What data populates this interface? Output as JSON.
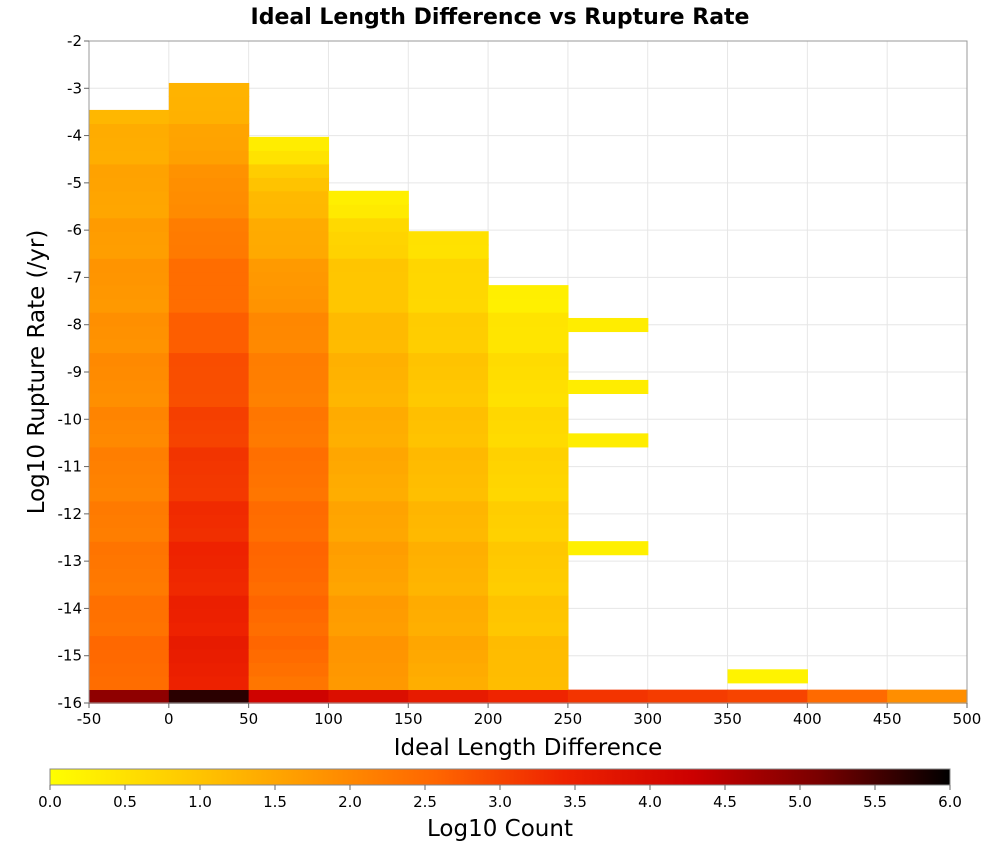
{
  "chart_data": {
    "type": "heatmap",
    "title": "Ideal Length Difference vs Rupture Rate",
    "xlabel": "Ideal Length Difference",
    "ylabel": "Log10 Rupture Rate (/yr)",
    "xlim": [
      -50,
      500
    ],
    "ylim": [
      -16,
      -2
    ],
    "x_ticks": [
      "-50",
      "0",
      "50",
      "100",
      "150",
      "200",
      "250",
      "300",
      "350",
      "400",
      "450",
      "500"
    ],
    "y_ticks": [
      "-2",
      "-3",
      "-4",
      "-5",
      "-6",
      "-7",
      "-8",
      "-9",
      "-10",
      "-11",
      "-12",
      "-13",
      "-14",
      "-15",
      "-16"
    ],
    "grid": true,
    "x_bin_width": 50,
    "y_bin_height": 0.285,
    "colorbar": {
      "label": "Log10 Count",
      "range": [
        0.0,
        6.0
      ],
      "ticks": [
        "0.0",
        "0.5",
        "1.0",
        "1.5",
        "2.0",
        "2.5",
        "3.0",
        "3.5",
        "4.0",
        "4.5",
        "5.0",
        "5.5",
        "6.0"
      ],
      "colors": [
        "#ffff00",
        "#ffcc00",
        "#ff9900",
        "#ff6600",
        "#ee2200",
        "#cc0000",
        "#770000",
        "#000000"
      ]
    },
    "columns": [
      {
        "x": -25,
        "rows": [
          {
            "y": -15.86,
            "v": 4.9
          },
          {
            "y": [
              -15.57,
              -3.58
            ],
            "v": [
              2.55,
              2.35,
              2.2,
              2.05,
              1.9,
              1.75,
              1.55,
              1.3
            ]
          }
        ]
      },
      {
        "x": 25,
        "rows": [
          {
            "y": -15.86,
            "v": 5.7
          },
          {
            "y": [
              -15.57,
              -3.01
            ],
            "v": [
              3.55,
              3.5,
              3.4,
              3.3,
              3.15,
              3.0,
              2.8,
              2.55,
              2.3,
              1.95,
              1.55,
              1.25
            ]
          }
        ]
      },
      {
        "x": 75,
        "rows": [
          {
            "y": -15.86,
            "v": 4.2
          },
          {
            "y": [
              -15.57,
              -4.15
            ],
            "v": [
              2.4,
              2.5,
              2.55,
              2.45,
              2.35,
              2.25,
              2.1,
              1.9,
              1.5,
              1.2,
              0.3
            ]
          }
        ]
      },
      {
        "x": 125,
        "rows": [
          {
            "y": -15.86,
            "v": 3.9
          },
          {
            "y": [
              -15.57,
              -5.29
            ],
            "v": [
              1.8,
              1.7,
              1.6,
              1.55,
              1.45,
              1.4,
              1.3,
              1.2,
              1.0,
              0.8,
              0.3
            ]
          }
        ]
      },
      {
        "x": 175,
        "rows": [
          {
            "y": -15.86,
            "v": 3.6
          },
          {
            "y": [
              -15.57,
              -6.15
            ],
            "v": [
              1.45,
              1.4,
              1.3,
              1.2,
              1.1,
              1.0,
              0.9,
              0.7,
              0.5
            ]
          }
        ]
      },
      {
        "x": 225,
        "rows": [
          {
            "y": -15.86,
            "v": 3.4
          },
          {
            "y": [
              -15.57,
              -7.29
            ],
            "v": [
              1.2,
              1.0,
              0.9,
              0.8,
              0.7,
              0.6,
              0.5,
              0.3
            ]
          }
        ]
      },
      {
        "x": 275,
        "rows": [
          {
            "y": -15.86,
            "v": 3.2
          },
          {
            "y": -12.72,
            "v": 0.25
          },
          {
            "y": -10.44,
            "v": 0.3
          },
          {
            "y": -9.31,
            "v": 0.3
          },
          {
            "y": -8.0,
            "v": 0.3
          }
        ]
      },
      {
        "x": 325,
        "rows": [
          {
            "y": -15.86,
            "v": 3.1
          }
        ]
      },
      {
        "x": 375,
        "rows": [
          {
            "y": -15.86,
            "v": 3.0
          },
          {
            "y": -15.43,
            "v": 0.2
          }
        ]
      },
      {
        "x": 425,
        "rows": [
          {
            "y": -15.86,
            "v": 2.5
          }
        ]
      },
      {
        "x": 475,
        "rows": [
          {
            "y": -15.86,
            "v": 1.9
          }
        ]
      }
    ]
  }
}
